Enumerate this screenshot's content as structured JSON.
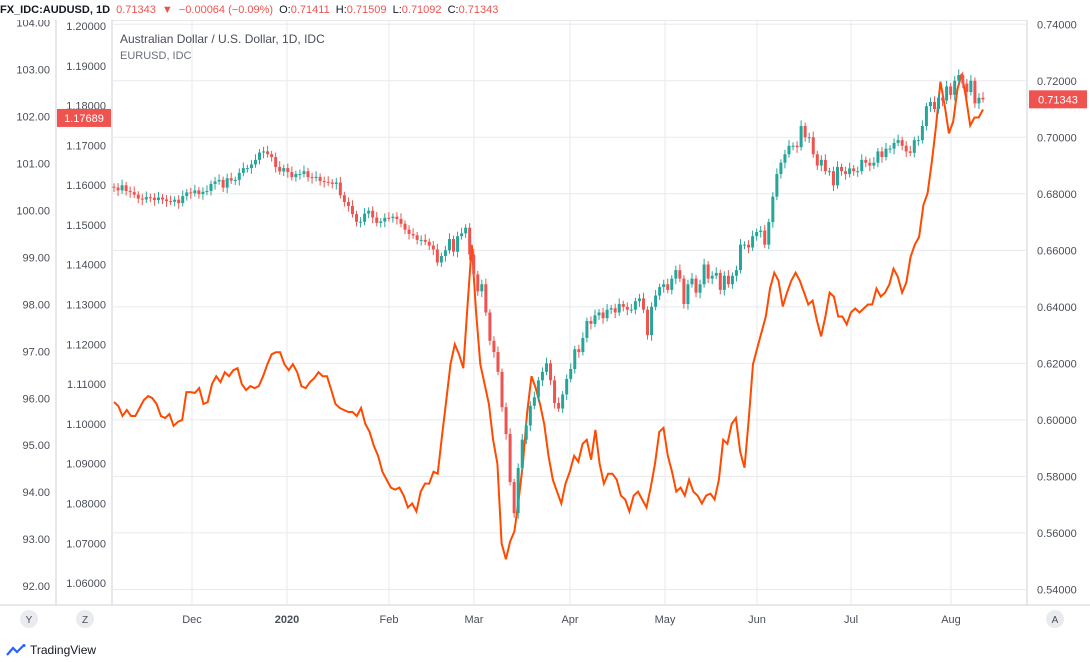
{
  "header": {
    "symbol": "FX_IDC:AUDUSD, 1D",
    "last": "0.71343",
    "arrow": "▼",
    "change": "−0.00064 (−0.09%)",
    "o_label": "O:",
    "o_value": "0.71411",
    "h_label": "H:",
    "h_value": "0.71509",
    "l_label": "L:",
    "l_value": "0.71092",
    "c_label": "C:",
    "c_value": "0.71343"
  },
  "legend": {
    "main": "Australian Dollar / U.S. Dollar, 1D, IDC",
    "compare": "EURUSD, IDC"
  },
  "scale_buttons": {
    "y": "Y",
    "z": "Z",
    "a": "A"
  },
  "logo_text": "TradingView",
  "colors": {
    "up": "#26a69a",
    "down": "#ef5350",
    "line": "#ff4a00",
    "grid": "#e8eaee",
    "axis_text": "#4a4e59",
    "badge": "#ef5350"
  },
  "chart_data": {
    "type": "line",
    "x_ticks": [
      "Dec",
      "2020",
      "Feb",
      "Mar",
      "Apr",
      "May",
      "Jun",
      "Jul",
      "Aug"
    ],
    "left_axis_1": {
      "ticks": [
        "104.00",
        "103.00",
        "102.00",
        "101.00",
        "100.00",
        "99.00",
        "98.00",
        "97.00",
        "96.00",
        "95.00",
        "94.00",
        "93.00",
        "92.00"
      ],
      "ylim": [
        91.6,
        104.05
      ],
      "badge": "102.00"
    },
    "left_axis_2": {
      "ticks": [
        "1.20000",
        "1.19000",
        "1.18000",
        "1.17000",
        "1.16000",
        "1.15000",
        "1.14000",
        "1.13000",
        "1.12000",
        "1.11000",
        "1.10000",
        "1.09000",
        "1.08000",
        "1.07000",
        "1.06000"
      ],
      "ylim": [
        1.0545,
        1.2015
      ],
      "badge": "1.17689"
    },
    "right_axis": {
      "ticks": [
        "0.74000",
        "0.72000",
        "0.70000",
        "0.68000",
        "0.66000",
        "0.64000",
        "0.62000",
        "0.60000",
        "0.58000",
        "0.56000",
        "0.54000"
      ],
      "ylim": [
        0.5345,
        0.7415
      ],
      "badge": "0.71343"
    },
    "series": [
      {
        "name": "EURUSD, IDC",
        "kind": "line",
        "values": [
          1.1055,
          1.1045,
          1.102,
          1.1035,
          1.102,
          1.102,
          1.104,
          1.106,
          1.107,
          1.1065,
          1.105,
          1.102,
          1.1015,
          1.1025,
          1.0995,
          1.1005,
          1.101,
          1.108,
          1.108,
          1.1078,
          1.109,
          1.105,
          1.1055,
          1.11,
          1.112,
          1.1105,
          1.113,
          1.112,
          1.1135,
          1.114,
          1.11,
          1.1085,
          1.1095,
          1.109,
          1.1095,
          1.112,
          1.115,
          1.1175,
          1.118,
          1.118,
          1.115,
          1.1135,
          1.115,
          1.113,
          1.1095,
          1.109,
          1.1105,
          1.1115,
          1.113,
          1.112,
          1.112,
          1.1085,
          1.105,
          1.104,
          1.1035,
          1.103,
          1.103,
          1.102,
          1.104,
          1.1,
          1.098,
          1.0945,
          1.092,
          1.088,
          1.086,
          1.084,
          1.0835,
          1.084,
          1.082,
          1.079,
          1.08,
          1.078,
          1.083,
          1.085,
          1.085,
          1.088,
          1.0875,
          1.097,
          1.106,
          1.115,
          1.12,
          1.1175,
          1.114,
          1.13,
          1.145,
          1.128,
          1.115,
          1.11,
          1.105,
          1.096,
          1.09,
          1.07,
          1.066,
          1.0705,
          1.073,
          1.081,
          1.09,
          1.103,
          1.112,
          1.109,
          1.105,
          1.1,
          1.092,
          1.086,
          1.083,
          1.08,
          1.085,
          1.088,
          1.092,
          1.0905,
          1.095,
          1.096,
          1.091,
          1.0985,
          1.09,
          1.085,
          1.0875,
          1.0875,
          1.086,
          1.082,
          1.081,
          1.078,
          1.082,
          1.083,
          1.081,
          1.079,
          1.084,
          1.09,
          1.098,
          1.099,
          1.092,
          1.088,
          1.083,
          1.084,
          1.082,
          1.086,
          1.083,
          1.082,
          1.08,
          1.082,
          1.0825,
          1.081,
          1.086,
          1.096,
          1.095,
          1.1,
          1.1015,
          1.093,
          1.089,
          1.101,
          1.115,
          1.119,
          1.123,
          1.127,
          1.134,
          1.138,
          1.136,
          1.1295,
          1.133,
          1.136,
          1.138,
          1.136,
          1.133,
          1.13,
          1.131,
          1.126,
          1.122,
          1.127,
          1.133,
          1.132,
          1.127,
          1.127,
          1.125,
          1.128,
          1.129,
          1.128,
          1.129,
          1.13,
          1.13,
          1.134,
          1.132,
          1.133,
          1.135,
          1.139,
          1.137,
          1.133,
          1.1355,
          1.142,
          1.145,
          1.147,
          1.155,
          1.158,
          1.166,
          1.175,
          1.186,
          1.18,
          1.173,
          1.176,
          1.184,
          1.188,
          1.182,
          1.175,
          1.177,
          1.177,
          1.179
        ]
      },
      {
        "name": "AUDUSD, 1D",
        "kind": "candlestick",
        "start_close": 0.6825,
        "closes": [
          0.6822,
          0.6812,
          0.683,
          0.681,
          0.6806,
          0.6797,
          0.6783,
          0.678,
          0.6788,
          0.6786,
          0.6778,
          0.6787,
          0.678,
          0.6774,
          0.6772,
          0.6779,
          0.6767,
          0.6792,
          0.6805,
          0.6802,
          0.6812,
          0.6799,
          0.6807,
          0.681,
          0.6835,
          0.6844,
          0.6849,
          0.6822,
          0.6855,
          0.6847,
          0.6849,
          0.6874,
          0.6891,
          0.6891,
          0.6904,
          0.692,
          0.6946,
          0.695,
          0.694,
          0.693,
          0.6895,
          0.6879,
          0.6891,
          0.6877,
          0.6859,
          0.687,
          0.687,
          0.688,
          0.6859,
          0.6856,
          0.686,
          0.6845,
          0.6842,
          0.684,
          0.6835,
          0.684,
          0.6795,
          0.6771,
          0.6757,
          0.6728,
          0.6701,
          0.6701,
          0.673,
          0.674,
          0.6716,
          0.6697,
          0.6702,
          0.6715,
          0.6714,
          0.6719,
          0.6711,
          0.6694,
          0.6673,
          0.6658,
          0.6653,
          0.6637,
          0.6637,
          0.663,
          0.6617,
          0.6603,
          0.6557,
          0.658,
          0.66,
          0.664,
          0.6595,
          0.665,
          0.666,
          0.668,
          0.6585,
          0.6515,
          0.6455,
          0.648,
          0.638,
          0.628,
          0.624,
          0.617,
          0.6045,
          0.595,
          0.578,
          0.567,
          0.583,
          0.593,
          0.598,
          0.605,
          0.608,
          0.614,
          0.617,
          0.62,
          0.614,
          0.606,
          0.604,
          0.609,
          0.6145,
          0.618,
          0.625,
          0.624,
          0.629,
          0.635,
          0.634,
          0.637,
          0.638,
          0.636,
          0.639,
          0.6395,
          0.638,
          0.641,
          0.64,
          0.639,
          0.639,
          0.642,
          0.643,
          0.639,
          0.63,
          0.64,
          0.644,
          0.647,
          0.648,
          0.646,
          0.65,
          0.653,
          0.65,
          0.641,
          0.648,
          0.65,
          0.645,
          0.648,
          0.655,
          0.65,
          0.651,
          0.652,
          0.646,
          0.651,
          0.648,
          0.651,
          0.653,
          0.662,
          0.662,
          0.661,
          0.665,
          0.6665,
          0.667,
          0.662,
          0.67,
          0.679,
          0.687,
          0.691,
          0.694,
          0.697,
          0.697,
          0.6965,
          0.704,
          0.7,
          0.7,
          0.694,
          0.69,
          0.692,
          0.688,
          0.688,
          0.683,
          0.6895,
          0.688,
          0.687,
          0.689,
          0.688,
          0.688,
          0.692,
          0.691,
          0.69,
          0.691,
          0.695,
          0.693,
          0.696,
          0.696,
          0.698,
          0.699,
          0.697,
          0.695,
          0.6945,
          0.699,
          0.699,
          0.704,
          0.711,
          0.7125,
          0.71,
          0.714,
          0.713,
          0.718,
          0.715,
          0.72,
          0.722,
          0.719,
          0.716,
          0.72,
          0.712,
          0.714,
          0.7134
        ]
      }
    ]
  }
}
